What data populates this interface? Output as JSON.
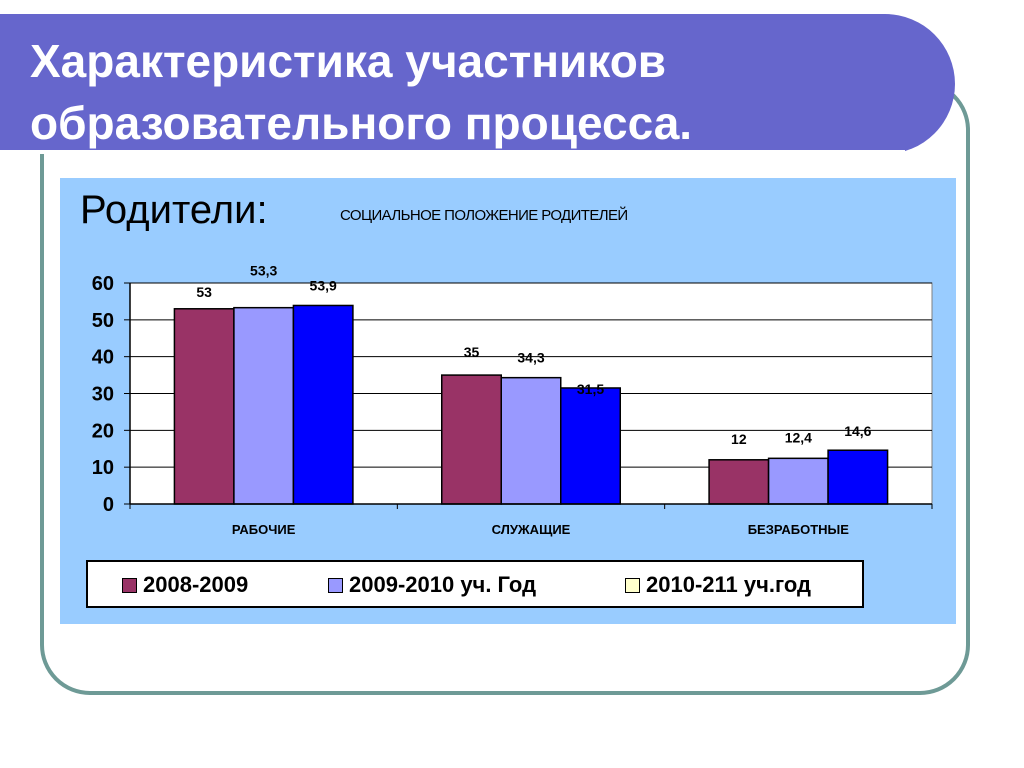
{
  "slide": {
    "title_line1": "Характеристика участников",
    "title_line2": "образовательного процесса.",
    "section_label": "Родители:"
  },
  "colors": {
    "title_bar": "#6666cc",
    "panel": "#99ccff",
    "frame_border": "#6e9a96"
  },
  "chart_data": {
    "type": "bar",
    "title": "СОЦИАЛЬНОЕ ПОЛОЖЕНИЕ РОДИТЕЛЕЙ",
    "categories": [
      "РАБОЧИЕ",
      "СЛУЖАЩИЕ",
      "БЕЗРАБОТНЫЕ"
    ],
    "series": [
      {
        "name": "2008-2009",
        "values": [
          53,
          35,
          12
        ],
        "labels": [
          "53",
          "35",
          "12"
        ],
        "color": "#993366"
      },
      {
        "name": "2009-2010 уч. Год",
        "values": [
          53.3,
          34.3,
          12.4
        ],
        "labels": [
          "53,3",
          "34,3",
          "12,4"
        ],
        "color": "#9999ff"
      },
      {
        "name": "2010-211 уч.год",
        "values": [
          53.9,
          31.5,
          14.6
        ],
        "labels": [
          "53,9",
          "31,5",
          "14,6"
        ],
        "color": "#0000ff",
        "legend_color": "#ffffcc"
      }
    ],
    "ylim": [
      0,
      60
    ],
    "yticks": [
      "0",
      "10",
      "20",
      "30",
      "40",
      "50",
      "60"
    ],
    "ytick_values": [
      0,
      10,
      20,
      30,
      40,
      50,
      60
    ],
    "grid": true,
    "legend": "bottom"
  }
}
